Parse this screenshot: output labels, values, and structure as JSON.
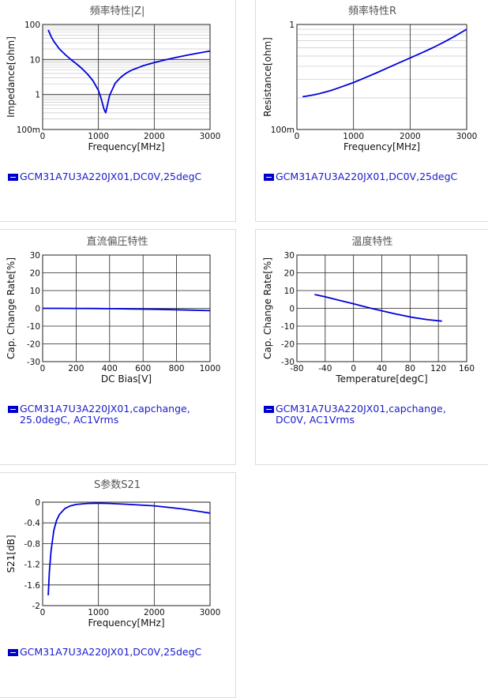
{
  "chart_data": [
    {
      "type": "line",
      "title": "頻率特性|Z|",
      "xlabel": "Frequency[MHz]",
      "ylabel": "Impedance[ohm]",
      "xlim": [
        0,
        3000
      ],
      "ylim": [
        0.1,
        100
      ],
      "yscale": "log",
      "xticks": [
        "0",
        "1000",
        "2000",
        "3000"
      ],
      "yticks": [
        "100m",
        "1",
        "10",
        "100"
      ],
      "grid": true,
      "legend": "GCM31A7U3A220JX01,DC0V,25degC",
      "series": [
        {
          "color": "#0000dd",
          "x": [
            100,
            150,
            200,
            300,
            400,
            500,
            600,
            700,
            800,
            900,
            1000,
            1050,
            1100,
            1130,
            1150,
            1200,
            1300,
            1400,
            1500,
            1600,
            1800,
            2000,
            2200,
            2400,
            2600,
            2800,
            3000
          ],
          "y": [
            70,
            46,
            33,
            20,
            14,
            10.2,
            7.6,
            5.6,
            3.9,
            2.5,
            1.3,
            0.75,
            0.38,
            0.3,
            0.42,
            0.95,
            2.1,
            3.1,
            4.1,
            5.0,
            6.6,
            8.2,
            9.8,
            11.5,
            13.3,
            15.3,
            17.5
          ]
        }
      ]
    },
    {
      "type": "line",
      "title": "頻率特性R",
      "xlabel": "Frequency[MHz]",
      "ylabel": "Resistance[ohm]",
      "xlim": [
        0,
        3000
      ],
      "ylim": [
        0.1,
        1
      ],
      "yscale": "log",
      "xticks": [
        "0",
        "1000",
        "2000",
        "3000"
      ],
      "yticks": [
        "100m",
        "1"
      ],
      "grid": true,
      "legend": "GCM31A7U3A220JX01,DC0V,25degC",
      "series": [
        {
          "color": "#0000dd",
          "x": [
            100,
            200,
            300,
            400,
            500,
            600,
            700,
            800,
            900,
            1000,
            1200,
            1400,
            1600,
            1800,
            2000,
            2200,
            2400,
            2600,
            2800,
            3000
          ],
          "y": [
            0.205,
            0.209,
            0.214,
            0.22,
            0.227,
            0.235,
            0.245,
            0.256,
            0.268,
            0.28,
            0.31,
            0.345,
            0.385,
            0.43,
            0.48,
            0.535,
            0.6,
            0.68,
            0.78,
            0.9
          ]
        }
      ]
    },
    {
      "type": "line",
      "title": "直流偏圧特性",
      "xlabel": "DC Bias[V]",
      "ylabel": "Cap. Change Rate[%]",
      "xlim": [
        0,
        1000
      ],
      "ylim": [
        -30,
        30
      ],
      "xticks": [
        "0",
        "200",
        "400",
        "600",
        "800",
        "1000"
      ],
      "yticks": [
        "-30",
        "-20",
        "-10",
        "0",
        "10",
        "20",
        "30"
      ],
      "grid": true,
      "legend": "GCM31A7U3A220JX01,capchange, 25.0degC, AC1Vrms",
      "series": [
        {
          "color": "#0000dd",
          "x": [
            0,
            100,
            200,
            300,
            400,
            500,
            600,
            700,
            800,
            900,
            1000
          ],
          "y": [
            0,
            0,
            -0.05,
            -0.1,
            -0.2,
            -0.3,
            -0.45,
            -0.6,
            -0.8,
            -1.0,
            -1.3
          ]
        }
      ]
    },
    {
      "type": "line",
      "title": "温度特性",
      "xlabel": "Temperature[degC]",
      "ylabel": "Cap. Change Rate[%]",
      "xlim": [
        -80,
        160
      ],
      "ylim": [
        -30,
        30
      ],
      "xticks": [
        "-80",
        "-40",
        "0",
        "40",
        "80",
        "120",
        "160"
      ],
      "yticks": [
        "-30",
        "-20",
        "-10",
        "0",
        "10",
        "20",
        "30"
      ],
      "grid": true,
      "legend": "GCM31A7U3A220JX01,capchange, DC0V, AC1Vrms",
      "series": [
        {
          "color": "#0000dd",
          "x": [
            -55,
            -40,
            -20,
            0,
            25,
            40,
            60,
            85,
            105,
            125
          ],
          "y": [
            7.8,
            6.5,
            4.5,
            2.6,
            0,
            -1.4,
            -3.2,
            -5.2,
            -6.4,
            -7.2
          ]
        }
      ]
    },
    {
      "type": "line",
      "title": "S参数S21",
      "xlabel": "Frequency[MHz]",
      "ylabel": "S21[dB]",
      "xlim": [
        0,
        3000
      ],
      "ylim": [
        -2,
        0
      ],
      "xticks": [
        "0",
        "1000",
        "2000",
        "3000"
      ],
      "yticks": [
        "-2",
        "-1.6",
        "-1.2",
        "-0.8",
        "-0.4",
        "0"
      ],
      "grid": true,
      "legend": "GCM31A7U3A220JX01,DC0V,25degC",
      "series": [
        {
          "color": "#0000dd",
          "x": [
            100,
            120,
            150,
            200,
            250,
            300,
            400,
            500,
            600,
            800,
            1000,
            1200,
            1500,
            2000,
            2500,
            3000
          ],
          "y": [
            -1.8,
            -1.35,
            -0.95,
            -0.55,
            -0.35,
            -0.24,
            -0.12,
            -0.07,
            -0.045,
            -0.025,
            -0.02,
            -0.025,
            -0.04,
            -0.07,
            -0.13,
            -0.21
          ]
        }
      ]
    }
  ]
}
